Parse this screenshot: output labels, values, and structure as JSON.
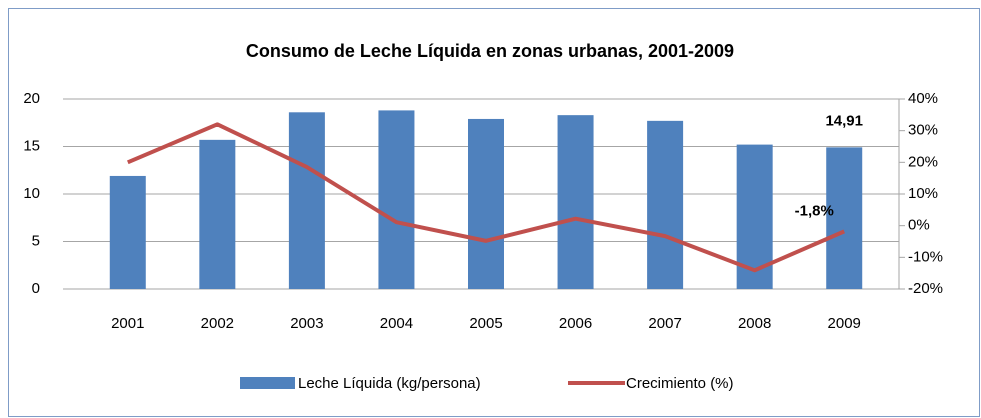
{
  "chart_data": {
    "type": "bar_line",
    "title": "Consumo de Leche Líquida en zonas urbanas, 2001-2009",
    "categories": [
      "2001",
      "2002",
      "2003",
      "2004",
      "2005",
      "2006",
      "2007",
      "2008",
      "2009"
    ],
    "series": [
      {
        "name": "Leche Líquida (kg/persona)",
        "type": "bar",
        "color": "#4f81bd",
        "values": [
          11.9,
          15.7,
          18.6,
          18.8,
          17.9,
          18.3,
          17.7,
          15.2,
          14.91
        ],
        "value_labels": [
          null,
          null,
          null,
          null,
          null,
          null,
          null,
          null,
          "14,91"
        ]
      },
      {
        "name": "Crecimiento (%)",
        "type": "line",
        "axis": "y2",
        "color": "#c0504d",
        "values": [
          20,
          32,
          18.5,
          1.1,
          -4.8,
          2.2,
          -3.3,
          -14.1,
          -1.8
        ],
        "value_labels": [
          null,
          null,
          null,
          null,
          null,
          null,
          null,
          null,
          "-1,8%"
        ]
      }
    ],
    "ylim": [
      0,
      20
    ],
    "yticks": [
      0,
      5,
      10,
      15,
      20
    ],
    "y2lim": [
      -20,
      40
    ],
    "y2ticks": [
      {
        "value": -20,
        "label": "-20%"
      },
      {
        "value": -10,
        "label": "-10%"
      },
      {
        "value": 0,
        "label": "0%"
      },
      {
        "value": 10,
        "label": "10%"
      },
      {
        "value": 20,
        "label": "20%"
      },
      {
        "value": 30,
        "label": "30%"
      },
      {
        "value": 40,
        "label": "40%"
      }
    ],
    "grid": true,
    "legend": "bottom"
  }
}
